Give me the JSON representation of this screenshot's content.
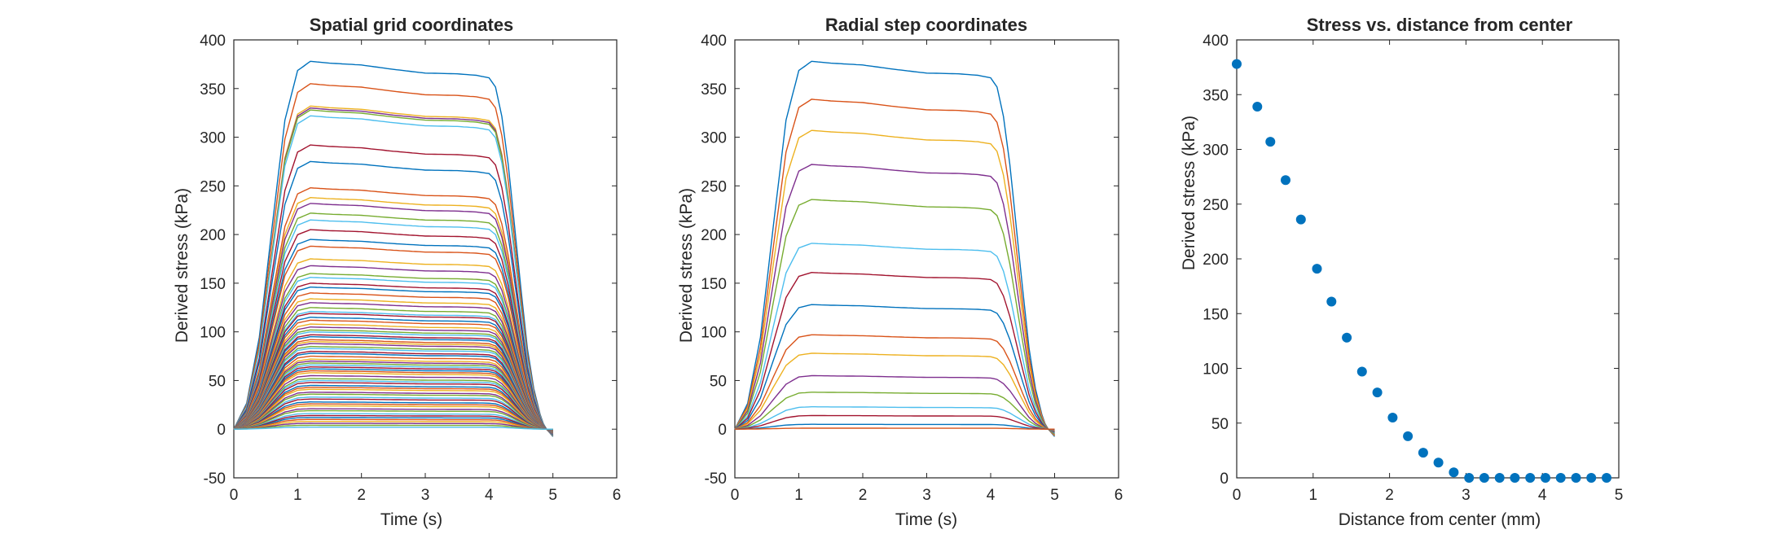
{
  "figure": {
    "background": "#ffffff",
    "axis_color": "#262626"
  },
  "chart_data": [
    {
      "type": "line",
      "title": "Spatial grid coordinates",
      "xlabel": "Time (s)",
      "ylabel": "Derived stress (kPa)",
      "xlim": [
        0,
        6
      ],
      "ylim": [
        -50,
        400
      ],
      "xticks": [
        0,
        1,
        2,
        3,
        4,
        5,
        6
      ],
      "yticks": [
        -50,
        0,
        50,
        100,
        150,
        200,
        250,
        300,
        350,
        400
      ],
      "time_profile": {
        "t": [
          0,
          0.2,
          0.4,
          0.6,
          0.8,
          1.0,
          1.2,
          1.5,
          2.0,
          2.5,
          3.0,
          3.5,
          3.8,
          4.0,
          4.1,
          4.2,
          4.3,
          4.4,
          4.5,
          4.6,
          4.7,
          4.8,
          4.85,
          4.9,
          5.0
        ],
        "rel": [
          0,
          0.07,
          0.25,
          0.55,
          0.84,
          0.975,
          1.0,
          0.995,
          0.99,
          0.978,
          0.968,
          0.966,
          0.962,
          0.955,
          0.93,
          0.85,
          0.72,
          0.55,
          0.38,
          0.22,
          0.11,
          0.04,
          0.015,
          0.0,
          -0.02
        ]
      },
      "colors": [
        "#0072BD",
        "#D95319",
        "#EDB120",
        "#7E2F8E",
        "#77AC30",
        "#4DBEEE",
        "#A2142F"
      ],
      "series_peak_values": [
        378,
        355,
        332,
        330,
        328,
        322,
        292,
        275,
        248,
        238,
        232,
        222,
        215,
        205,
        195,
        188,
        175,
        168,
        160,
        156,
        150,
        146,
        140,
        134,
        130,
        125,
        121,
        119,
        115,
        112,
        108,
        105,
        102,
        100,
        97,
        95,
        92,
        90,
        88,
        85,
        83,
        80,
        78,
        75,
        72,
        70,
        68,
        66,
        64,
        62,
        60,
        58,
        55,
        52,
        50,
        48,
        45,
        43,
        41,
        38,
        36,
        33,
        31,
        28,
        26,
        24,
        21,
        19,
        16,
        14,
        12,
        10,
        8,
        6,
        4,
        2
      ]
    },
    {
      "type": "line",
      "title": "Radial step coordinates",
      "xlabel": "Time (s)",
      "ylabel": "Derived stress (kPa)",
      "xlim": [
        0,
        6
      ],
      "ylim": [
        -50,
        400
      ],
      "xticks": [
        0,
        1,
        2,
        3,
        4,
        5,
        6
      ],
      "yticks": [
        -50,
        0,
        50,
        100,
        150,
        200,
        250,
        300,
        350,
        400
      ],
      "colors": [
        "#0072BD",
        "#D95319",
        "#EDB120",
        "#7E2F8E",
        "#77AC30",
        "#4DBEEE",
        "#A2142F"
      ],
      "series_peak_values": [
        378,
        339,
        307,
        272,
        236,
        191,
        161,
        128,
        97,
        78,
        55,
        38,
        23,
        14,
        5,
        1
      ]
    },
    {
      "type": "scatter",
      "title": "Stress vs. distance from center",
      "xlabel": "Distance from center (mm)",
      "ylabel": "Derived stress (kPa)",
      "xlim": [
        0,
        5
      ],
      "ylim": [
        0,
        400
      ],
      "xticks": [
        0,
        1,
        2,
        3,
        4,
        5
      ],
      "yticks": [
        0,
        50,
        100,
        150,
        200,
        250,
        300,
        350,
        400
      ],
      "marker_color": "#0072BD",
      "x": [
        0,
        0.27,
        0.44,
        0.64,
        0.84,
        1.05,
        1.24,
        1.44,
        1.64,
        1.84,
        2.04,
        2.24,
        2.44,
        2.64,
        2.84,
        3.04,
        3.24,
        3.44,
        3.64,
        3.84,
        4.04,
        4.24,
        4.44,
        4.64,
        4.84
      ],
      "y": [
        378,
        339,
        307,
        272,
        236,
        191,
        161,
        128,
        97,
        78,
        55,
        38,
        23,
        14,
        5,
        0,
        0,
        0,
        0,
        0,
        0,
        0,
        0,
        0,
        0
      ]
    }
  ]
}
